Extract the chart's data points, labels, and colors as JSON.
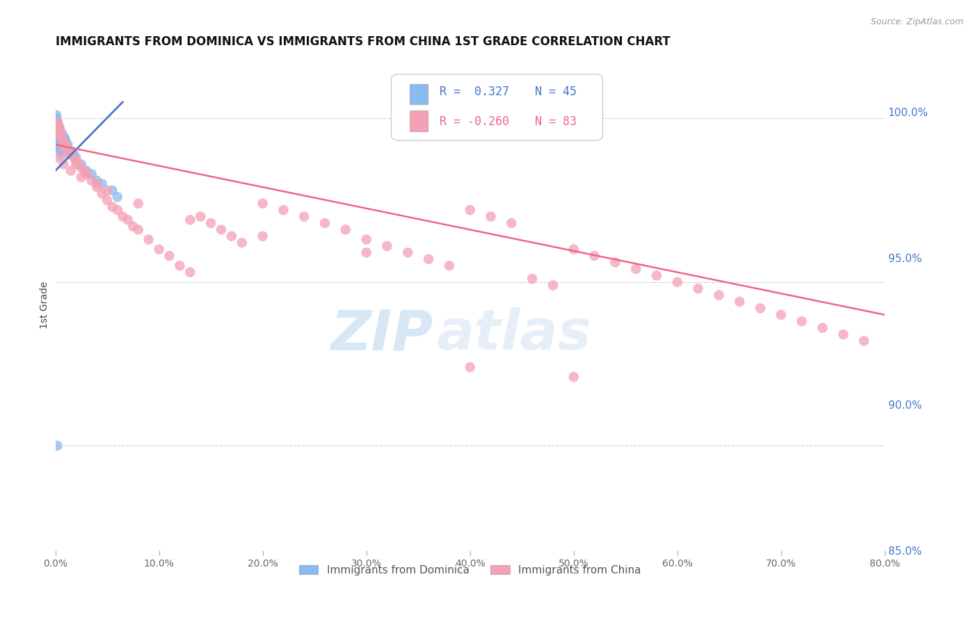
{
  "title": "IMMIGRANTS FROM DOMINICA VS IMMIGRANTS FROM CHINA 1ST GRADE CORRELATION CHART",
  "source": "Source: ZipAtlas.com",
  "ylabel": "1st Grade",
  "dominica_color": "#88bbee",
  "china_color": "#f4a0b5",
  "dominica_line_color": "#4477cc",
  "china_line_color": "#ee6688",
  "legend_R_dominica": "R =  0.327",
  "legend_N_dominica": "N = 45",
  "legend_R_china": "R = -0.260",
  "legend_N_china": "N = 83",
  "watermark_zip": "ZIP",
  "watermark_atlas": "atlas",
  "xlim": [
    0.0,
    0.8
  ],
  "ylim": [
    0.868,
    1.018
  ],
  "ytick_values": [
    1.0,
    0.95,
    0.9,
    0.85
  ],
  "xtick_values": [
    0.0,
    0.1,
    0.2,
    0.3,
    0.4,
    0.5,
    0.6,
    0.7,
    0.8
  ],
  "china_line_x": [
    0.0,
    0.8
  ],
  "china_line_y": [
    0.992,
    0.94
  ],
  "dom_line_x": [
    0.0,
    0.065
  ],
  "dom_line_y": [
    0.984,
    1.005
  ],
  "dom_scatter_x": [
    0.001,
    0.001,
    0.001,
    0.001,
    0.001,
    0.001,
    0.001,
    0.001,
    0.002,
    0.002,
    0.002,
    0.002,
    0.002,
    0.002,
    0.003,
    0.003,
    0.003,
    0.003,
    0.004,
    0.004,
    0.004,
    0.005,
    0.005,
    0.006,
    0.007,
    0.008,
    0.009,
    0.01,
    0.012,
    0.015,
    0.018,
    0.02,
    0.025,
    0.03,
    0.035,
    0.04,
    0.045,
    0.002,
    0.003,
    0.004,
    0.005,
    0.006,
    0.055,
    0.06,
    0.002
  ],
  "dom_scatter_y": [
    1.001,
    1.0,
    0.999,
    0.998,
    0.997,
    0.996,
    0.995,
    0.994,
    0.999,
    0.998,
    0.997,
    0.996,
    0.995,
    0.994,
    0.998,
    0.997,
    0.996,
    0.995,
    0.997,
    0.996,
    0.995,
    0.996,
    0.995,
    0.995,
    0.995,
    0.994,
    0.994,
    0.993,
    0.992,
    0.99,
    0.989,
    0.988,
    0.986,
    0.984,
    0.983,
    0.981,
    0.98,
    0.993,
    0.992,
    0.991,
    0.99,
    0.989,
    0.978,
    0.976,
    0.9
  ],
  "china_scatter_x": [
    0.002,
    0.003,
    0.004,
    0.005,
    0.006,
    0.008,
    0.01,
    0.012,
    0.015,
    0.018,
    0.02,
    0.022,
    0.025,
    0.028,
    0.03,
    0.035,
    0.04,
    0.045,
    0.05,
    0.055,
    0.06,
    0.065,
    0.07,
    0.075,
    0.08,
    0.09,
    0.1,
    0.11,
    0.12,
    0.13,
    0.14,
    0.15,
    0.16,
    0.17,
    0.18,
    0.2,
    0.22,
    0.24,
    0.26,
    0.28,
    0.3,
    0.32,
    0.34,
    0.36,
    0.38,
    0.4,
    0.42,
    0.44,
    0.46,
    0.48,
    0.5,
    0.52,
    0.54,
    0.56,
    0.58,
    0.6,
    0.62,
    0.64,
    0.66,
    0.68,
    0.7,
    0.72,
    0.74,
    0.76,
    0.78,
    0.003,
    0.008,
    0.015,
    0.025,
    0.04,
    0.003,
    0.005,
    0.008,
    0.012,
    0.02,
    0.03,
    0.05,
    0.08,
    0.13,
    0.2,
    0.3,
    0.4,
    0.5
  ],
  "china_scatter_y": [
    0.999,
    0.998,
    0.997,
    0.996,
    0.995,
    0.993,
    0.992,
    0.991,
    0.989,
    0.988,
    0.987,
    0.986,
    0.985,
    0.984,
    0.983,
    0.981,
    0.979,
    0.977,
    0.975,
    0.973,
    0.972,
    0.97,
    0.969,
    0.967,
    0.966,
    0.963,
    0.96,
    0.958,
    0.955,
    0.953,
    0.97,
    0.968,
    0.966,
    0.964,
    0.962,
    0.974,
    0.972,
    0.97,
    0.968,
    0.966,
    0.963,
    0.961,
    0.959,
    0.957,
    0.955,
    0.972,
    0.97,
    0.968,
    0.951,
    0.949,
    0.96,
    0.958,
    0.956,
    0.954,
    0.952,
    0.95,
    0.948,
    0.946,
    0.944,
    0.942,
    0.94,
    0.938,
    0.936,
    0.934,
    0.932,
    0.988,
    0.986,
    0.984,
    0.982,
    0.98,
    0.996,
    0.994,
    0.991,
    0.989,
    0.986,
    0.983,
    0.978,
    0.974,
    0.969,
    0.964,
    0.959,
    0.924,
    0.921
  ]
}
